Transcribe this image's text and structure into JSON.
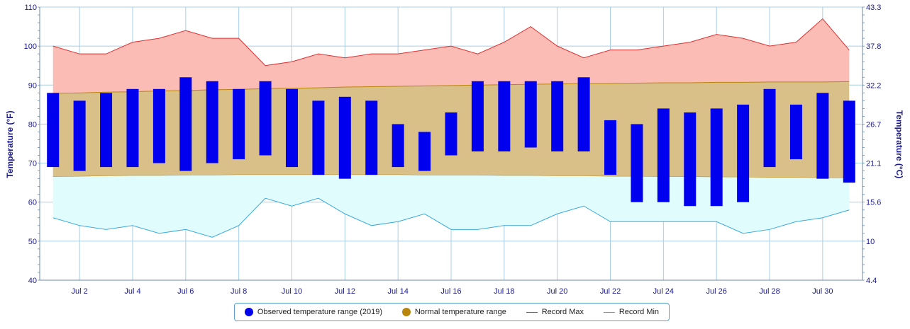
{
  "chart_data": {
    "type": "bar",
    "left_axis_label": "Temperature (°F)",
    "right_axis_label": "Temperature (°C)",
    "ylim": [
      40,
      110
    ],
    "y_ticks": [
      40,
      50,
      60,
      70,
      80,
      90,
      100,
      110
    ],
    "y_ticks_c": [
      "4.4",
      "10",
      "15.6",
      "21.1",
      "26.7",
      "32.2",
      "37.8",
      "43.3"
    ],
    "grid": true,
    "legend_position": "bottom",
    "x_tick_labels": [
      "Jul 2",
      "Jul 4",
      "Jul 6",
      "Jul 8",
      "Jul 10",
      "Jul 12",
      "Jul 14",
      "Jul 16",
      "Jul 18",
      "Jul 20",
      "Jul 22",
      "Jul 24",
      "Jul 26",
      "Jul 28",
      "Jul 30"
    ],
    "x_tick_days": [
      2,
      4,
      6,
      8,
      10,
      12,
      14,
      16,
      18,
      20,
      22,
      24,
      26,
      28,
      30
    ],
    "days": [
      1,
      2,
      3,
      4,
      5,
      6,
      7,
      8,
      9,
      10,
      11,
      12,
      13,
      14,
      15,
      16,
      17,
      18,
      19,
      20,
      21,
      22,
      23,
      24,
      25,
      26,
      27,
      28,
      29,
      30,
      31
    ],
    "series": [
      {
        "name": "Observed temperature range (2019)",
        "color": "#0000ee",
        "low": [
          69,
          68,
          69,
          69,
          70,
          68,
          70,
          71,
          72,
          69,
          67,
          66,
          67,
          69,
          68,
          72,
          73,
          73,
          74,
          73,
          73,
          67,
          60,
          60,
          59,
          59,
          60,
          69,
          71,
          66,
          65
        ],
        "high": [
          88,
          86,
          88,
          89,
          89,
          92,
          91,
          89,
          91,
          89,
          86,
          87,
          86,
          80,
          78,
          83,
          91,
          91,
          91,
          91,
          92,
          81,
          80,
          84,
          83,
          84,
          85,
          89,
          85,
          88,
          86
        ]
      },
      {
        "name": "Normal temperature range",
        "color": "#b8860b",
        "low": [
          66.5,
          66.6,
          66.7,
          66.8,
          66.8,
          66.9,
          66.9,
          67.0,
          67.0,
          67.0,
          67.0,
          67.0,
          67.0,
          67.0,
          66.9,
          66.9,
          66.9,
          66.8,
          66.8,
          66.7,
          66.7,
          66.6,
          66.6,
          66.5,
          66.5,
          66.4,
          66.4,
          66.3,
          66.3,
          66.2,
          66.2
        ],
        "high": [
          87.9,
          88.0,
          88.2,
          88.3,
          88.5,
          88.6,
          88.8,
          88.9,
          89.1,
          89.2,
          89.3,
          89.5,
          89.6,
          89.7,
          89.8,
          89.9,
          90.0,
          90.1,
          90.2,
          90.3,
          90.4,
          90.4,
          90.5,
          90.6,
          90.6,
          90.7,
          90.7,
          90.8,
          90.8,
          90.8,
          90.9
        ]
      },
      {
        "name": "Record Max",
        "color": "#e03030",
        "values": [
          100,
          98,
          98,
          101,
          102,
          104,
          102,
          102,
          95,
          96,
          98,
          97,
          98,
          98,
          99,
          100,
          98,
          101,
          105,
          100,
          97,
          99,
          99,
          100,
          101,
          103,
          102,
          100,
          101,
          107,
          99
        ]
      },
      {
        "name": "Record Min",
        "color": "#3aa8e0",
        "values": [
          56,
          54,
          53,
          54,
          52,
          53,
          51,
          54,
          61,
          59,
          61,
          57,
          54,
          55,
          57,
          53,
          53,
          54,
          54,
          57,
          59,
          55,
          55,
          55,
          55,
          55,
          52,
          53,
          55,
          56,
          58
        ]
      }
    ]
  }
}
